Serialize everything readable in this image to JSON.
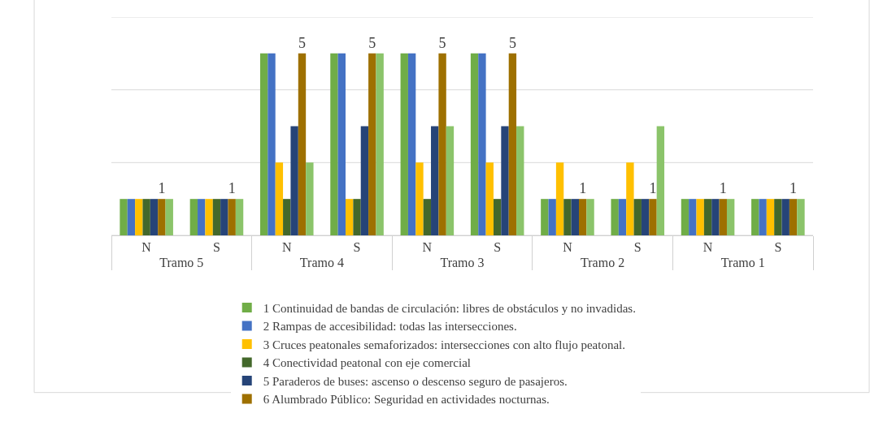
{
  "chart_data": {
    "type": "bar",
    "categories": [
      "N",
      "S",
      "N",
      "S",
      "N",
      "S",
      "N",
      "S",
      "N",
      "S"
    ],
    "annotations": [
      "Tramo 5",
      "Tramo 4",
      "Tramo 3",
      "Tramo 2",
      "Tramo 1"
    ],
    "series": [
      {
        "name": "1 Continuidad de bandas de circulación: libres de obstáculos y no invadidas.",
        "color": "#70ad47",
        "values": [
          1,
          1,
          5,
          5,
          5,
          5,
          1,
          1,
          1,
          1
        ]
      },
      {
        "name": "2 Rampas de accesibilidad: todas las intersecciones.",
        "color": "#4472c4",
        "values": [
          1,
          1,
          5,
          5,
          5,
          5,
          1,
          1,
          1,
          1
        ]
      },
      {
        "name": "3 Cruces peatonales semaforizados: intersecciones con alto flujo peatonal.",
        "color": "#ffc000",
        "values": [
          1,
          1,
          2,
          1,
          2,
          2,
          2,
          2,
          1,
          1
        ]
      },
      {
        "name": "4 Conectividad peatonal con eje comercial",
        "color": "#43682b",
        "values": [
          1,
          1,
          1,
          1,
          1,
          1,
          1,
          1,
          1,
          1
        ]
      },
      {
        "name": "5 Paraderos de buses: ascenso o descenso seguro de pasajeros.",
        "color": "#264478",
        "values": [
          1,
          1,
          3,
          3,
          3,
          3,
          1,
          1,
          1,
          1
        ]
      },
      {
        "name": "6 Alumbrado Público: Seguridad en actividades nocturnas.",
        "color": "#9e7000",
        "values": [
          1,
          1,
          5,
          5,
          5,
          5,
          1,
          1,
          1,
          1
        ],
        "value_labels": [
          "1",
          "1",
          "5",
          "5",
          "5",
          "5",
          "1",
          "1",
          "1",
          "1"
        ]
      },
      {
        "color": "#8bc46a",
        "values": [
          1,
          1,
          2,
          5,
          3,
          3,
          1,
          3,
          1,
          1
        ]
      }
    ],
    "ylim": [
      0,
      6
    ],
    "yticks": [
      {
        "value": 0,
        "label": null
      },
      {
        "value": 2,
        "label": null
      },
      {
        "value": 4,
        "label": null
      },
      {
        "value": 6,
        "label": null
      }
    ],
    "grid": "y",
    "tick_labels": "x",
    "legend": "bottom"
  }
}
